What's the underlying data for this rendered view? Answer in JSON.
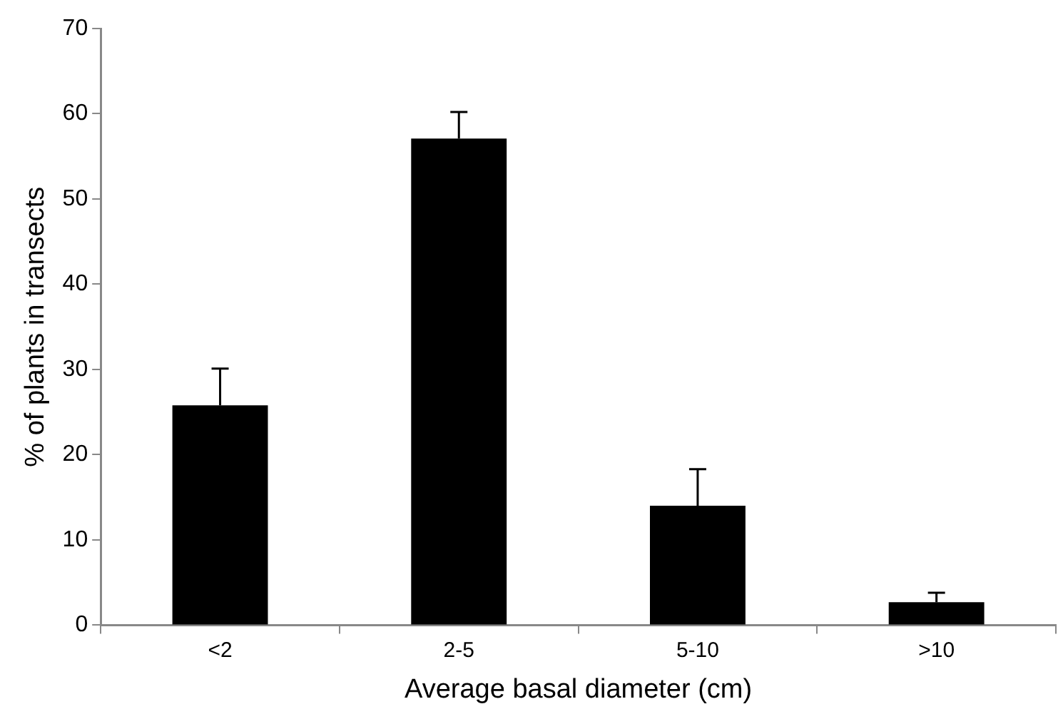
{
  "chart_data": {
    "type": "bar",
    "xlabel": "Average basal diameter (cm)",
    "ylabel": "% of plants in transects",
    "categories": [
      "<2",
      "2-5",
      "5-10",
      ">10"
    ],
    "values": [
      25.8,
      57.1,
      14.0,
      2.7
    ],
    "errors": [
      [
        25.8,
        30.1
      ],
      [
        57.1,
        60.2
      ],
      [
        14.0,
        18.3
      ],
      [
        2.7,
        3.8
      ]
    ],
    "color": "#000000",
    "ylim": [
      0,
      70
    ],
    "yticks": [
      0,
      10,
      20,
      30,
      40,
      50,
      60,
      70
    ],
    "grid": false,
    "legend": false
  }
}
